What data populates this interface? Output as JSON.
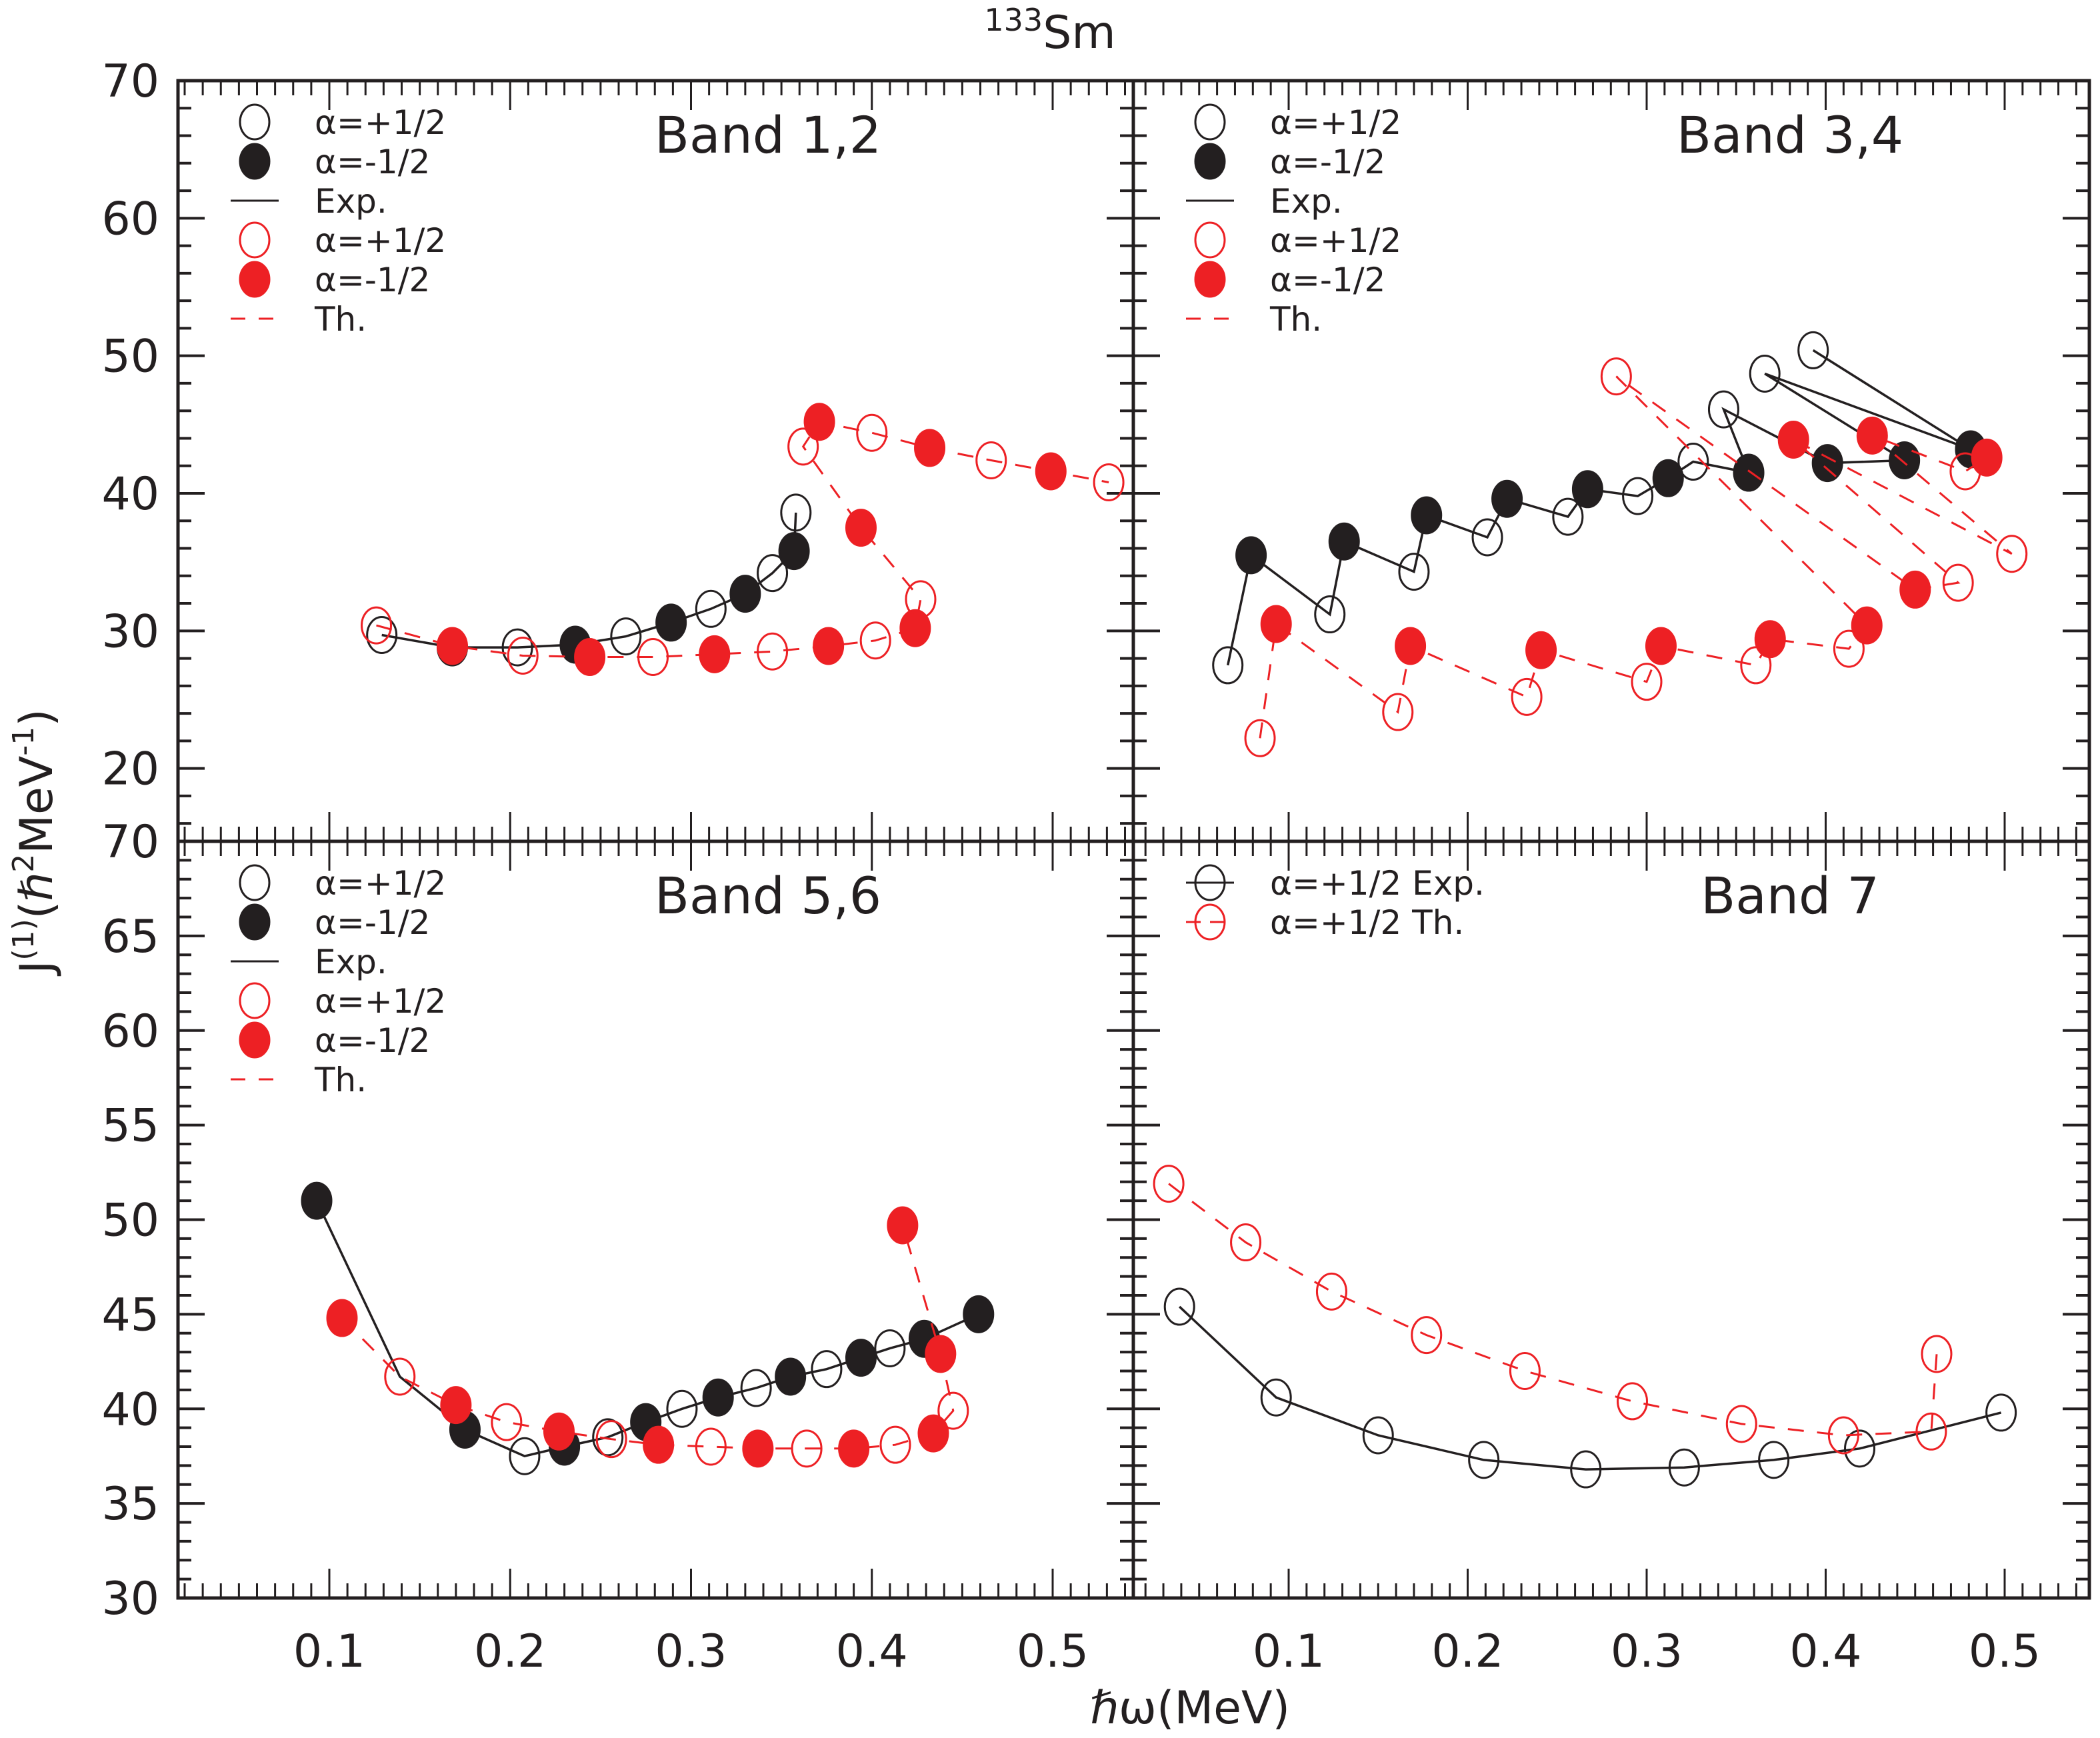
{
  "figure_title": {
    "mass": "133",
    "element": "Sm"
  },
  "xlabel": "ℏω(MeV)",
  "ylabel": {
    "main": "J",
    "sup1": "(1)",
    "unit_open": "(ℏ",
    "sup2": "2",
    "unit_mid": "MeV",
    "sup3": "-1",
    "unit_close": ")"
  },
  "colors": {
    "exp": "#231f20",
    "th": "#ed2024",
    "axis": "#231f20"
  },
  "chart_data": [
    {
      "type": "line",
      "panel": "top-left",
      "title": "Band 1,2",
      "xlabel": "ℏω(MeV)",
      "ylabel": "J(1)(ℏ2MeV-1)",
      "xlim": [
        0.02,
        0.54
      ],
      "ylim": [
        14.7,
        70
      ],
      "xticks": [
        0.1,
        0.2,
        0.3,
        0.4,
        0.5
      ],
      "yticks": [
        20,
        30,
        40,
        50,
        60,
        70
      ],
      "legend_position": "top-left",
      "legend": [
        {
          "label": "α=+1/2",
          "marker": "open",
          "color": "exp"
        },
        {
          "label": "α=-1/2",
          "marker": "filled",
          "color": "exp"
        },
        {
          "label": "Exp.",
          "marker": "line",
          "color": "exp"
        },
        {
          "label": "α=+1/2",
          "marker": "open",
          "color": "th"
        },
        {
          "label": "α=-1/2",
          "marker": "filled",
          "color": "th"
        },
        {
          "label": "Th.",
          "marker": "dash",
          "color": "th"
        }
      ],
      "series": [
        {
          "name": "Exp.",
          "color": "exp",
          "line": "solid",
          "points": [
            [
              0.129,
              29.7,
              "o"
            ],
            [
              0.168,
              28.8,
              "f"
            ],
            [
              0.204,
              28.8,
              "o"
            ],
            [
              0.236,
              29.0,
              "f"
            ],
            [
              0.264,
              29.6,
              "o"
            ],
            [
              0.289,
              30.6,
              "f"
            ],
            [
              0.311,
              31.6,
              "o"
            ],
            [
              0.33,
              32.7,
              "f"
            ],
            [
              0.345,
              34.2,
              "o"
            ],
            [
              0.357,
              35.8,
              "f"
            ],
            [
              0.358,
              38.6,
              "o"
            ]
          ]
        },
        {
          "name": "Th.",
          "color": "th",
          "line": "dashed",
          "points": [
            [
              0.126,
              30.4,
              "o"
            ],
            [
              0.168,
              28.9,
              "f"
            ],
            [
              0.207,
              28.2,
              "o"
            ],
            [
              0.244,
              28.1,
              "f"
            ],
            [
              0.279,
              28.1,
              "o"
            ],
            [
              0.313,
              28.3,
              "f"
            ],
            [
              0.345,
              28.5,
              "o"
            ],
            [
              0.376,
              28.9,
              "f"
            ],
            [
              0.402,
              29.3,
              "o"
            ],
            [
              0.424,
              30.2,
              "f"
            ],
            [
              0.427,
              32.3,
              "o"
            ],
            [
              0.394,
              37.5,
              "f"
            ],
            [
              0.362,
              43.4,
              "o"
            ],
            [
              0.371,
              45.2,
              "f"
            ],
            [
              0.4,
              44.4,
              "o"
            ],
            [
              0.432,
              43.3,
              "f"
            ],
            [
              0.466,
              42.4,
              "o"
            ],
            [
              0.499,
              41.6,
              "f"
            ],
            [
              0.531,
              40.8,
              "o"
            ]
          ]
        }
      ]
    },
    {
      "type": "line",
      "panel": "top-right",
      "title": "Band 3,4",
      "xlim": [
        0.02,
        0.54
      ],
      "ylim": [
        14.7,
        70
      ],
      "xticks": [
        0.1,
        0.2,
        0.3,
        0.4,
        0.5
      ],
      "yticks": [
        20,
        30,
        40,
        50,
        60,
        70
      ],
      "legend_position": "top-left",
      "legend": [
        {
          "label": "α=+1/2",
          "marker": "open",
          "color": "exp"
        },
        {
          "label": "α=-1/2",
          "marker": "filled",
          "color": "exp"
        },
        {
          "label": "Exp.",
          "marker": "line",
          "color": "exp"
        },
        {
          "label": "α=+1/2",
          "marker": "open",
          "color": "th"
        },
        {
          "label": "α=-1/2",
          "marker": "filled",
          "color": "th"
        },
        {
          "label": "Th.",
          "marker": "dash",
          "color": "th"
        }
      ],
      "series": [
        {
          "name": "Exp.",
          "color": "exp",
          "line": "solid",
          "points": [
            [
              0.066,
              27.5,
              "o"
            ],
            [
              0.079,
              35.5,
              "f"
            ],
            [
              0.123,
              31.2,
              "o"
            ],
            [
              0.131,
              36.5,
              "f"
            ],
            [
              0.17,
              34.3,
              "o"
            ],
            [
              0.177,
              38.4,
              "f"
            ],
            [
              0.211,
              36.8,
              "o"
            ],
            [
              0.222,
              39.6,
              "f"
            ],
            [
              0.256,
              38.3,
              "o"
            ],
            [
              0.267,
              40.3,
              "f"
            ],
            [
              0.295,
              39.8,
              "o"
            ],
            [
              0.312,
              41.1,
              "f"
            ],
            [
              0.326,
              42.3,
              "o"
            ],
            [
              0.357,
              41.5,
              "f"
            ],
            [
              0.343,
              46.1,
              "o"
            ],
            [
              0.401,
              42.2,
              "f"
            ],
            [
              0.444,
              42.4,
              "f"
            ],
            [
              0.366,
              48.7,
              "o"
            ],
            [
              0.481,
              43.2,
              "f"
            ],
            [
              0.393,
              50.4,
              "o"
            ]
          ]
        },
        {
          "name": "Th.",
          "color": "th",
          "line": "dashed",
          "points": [
            [
              0.084,
              22.2,
              "o"
            ],
            [
              0.093,
              30.5,
              "f"
            ],
            [
              0.161,
              24.1,
              "o"
            ],
            [
              0.168,
              28.9,
              "f"
            ],
            [
              0.233,
              25.2,
              "o"
            ],
            [
              0.241,
              28.6,
              "f"
            ],
            [
              0.3,
              26.3,
              "o"
            ],
            [
              0.308,
              28.9,
              "f"
            ],
            [
              0.361,
              27.5,
              "o"
            ],
            [
              0.369,
              29.4,
              "f"
            ],
            [
              0.413,
              28.7,
              "o"
            ],
            [
              0.423,
              30.4,
              "f"
            ],
            [
              0.283,
              48.5,
              "o"
            ],
            [
              0.45,
              33.0,
              "f"
            ],
            [
              0.474,
              33.5,
              "o"
            ],
            [
              0.382,
              43.9,
              "f"
            ],
            [
              0.504,
              35.6,
              "o"
            ],
            [
              0.426,
              44.2,
              "f"
            ],
            [
              0.478,
              41.6,
              "o"
            ],
            [
              0.49,
              42.6,
              "f"
            ]
          ]
        }
      ]
    },
    {
      "type": "line",
      "panel": "bottom-left",
      "title": "Band 5,6",
      "xlim": [
        0.02,
        0.54
      ],
      "ylim": [
        30,
        70
      ],
      "xticks": [
        0.1,
        0.2,
        0.3,
        0.4,
        0.5
      ],
      "yticks": [
        30,
        35,
        40,
        45,
        50,
        55,
        60,
        65,
        70
      ],
      "legend_position": "top-left",
      "legend": [
        {
          "label": "α=+1/2",
          "marker": "open",
          "color": "exp"
        },
        {
          "label": "α=-1/2",
          "marker": "filled",
          "color": "exp"
        },
        {
          "label": "Exp.",
          "marker": "line",
          "color": "exp"
        },
        {
          "label": "α=+1/2",
          "marker": "open",
          "color": "th"
        },
        {
          "label": "α=-1/2",
          "marker": "filled",
          "color": "th"
        },
        {
          "label": "Th.",
          "marker": "dash",
          "color": "th"
        }
      ],
      "series": [
        {
          "name": "Exp.",
          "color": "exp",
          "line": "solid",
          "points": [
            [
              0.093,
              51.0,
              "f"
            ],
            [
              0.139,
              41.7,
              "n"
            ],
            [
              0.175,
              38.9,
              "f"
            ],
            [
              0.208,
              37.5,
              "o"
            ],
            [
              0.23,
              38.0,
              "f"
            ],
            [
              0.254,
              38.5,
              "o"
            ],
            [
              0.275,
              39.3,
              "f"
            ],
            [
              0.295,
              40.0,
              "o"
            ],
            [
              0.315,
              40.6,
              "f"
            ],
            [
              0.336,
              41.1,
              "o"
            ],
            [
              0.355,
              41.7,
              "f"
            ],
            [
              0.375,
              42.1,
              "o"
            ],
            [
              0.394,
              42.7,
              "f"
            ],
            [
              0.41,
              43.2,
              "o"
            ],
            [
              0.429,
              43.7,
              "f"
            ],
            [
              0.459,
              45.0,
              "f"
            ]
          ]
        },
        {
          "name": "Th.",
          "color": "th",
          "line": "dashed",
          "points": [
            [
              0.107,
              44.8,
              "f"
            ],
            [
              0.139,
              41.7,
              "o"
            ],
            [
              0.17,
              40.2,
              "f"
            ],
            [
              0.198,
              39.3,
              "o"
            ],
            [
              0.227,
              38.8,
              "f"
            ],
            [
              0.256,
              38.4,
              "o"
            ],
            [
              0.282,
              38.1,
              "f"
            ],
            [
              0.311,
              38.0,
              "o"
            ],
            [
              0.337,
              37.9,
              "f"
            ],
            [
              0.364,
              37.9,
              "o"
            ],
            [
              0.39,
              37.9,
              "f"
            ],
            [
              0.413,
              38.1,
              "o"
            ],
            [
              0.434,
              38.7,
              "f"
            ],
            [
              0.445,
              39.9,
              "o"
            ],
            [
              0.438,
              42.9,
              "f"
            ],
            [
              0.417,
              49.7,
              "f"
            ]
          ]
        }
      ]
    },
    {
      "type": "line",
      "panel": "bottom-right",
      "title": "Band 7",
      "xlim": [
        0.02,
        0.54
      ],
      "ylim": [
        30,
        70
      ],
      "xticks": [
        0.1,
        0.2,
        0.3,
        0.4,
        0.5
      ],
      "yticks": [
        30,
        35,
        40,
        45,
        50,
        55,
        60,
        65,
        70
      ],
      "legend_position": "top-left",
      "legend": [
        {
          "label": "α=+1/2 Exp.",
          "marker": "open-line",
          "color": "exp"
        },
        {
          "label": "α=+1/2 Th.",
          "marker": "open-dash",
          "color": "th"
        }
      ],
      "series": [
        {
          "name": "α=+1/2 Exp.",
          "color": "exp",
          "line": "solid",
          "points": [
            [
              0.039,
              45.4,
              "o"
            ],
            [
              0.093,
              40.6,
              "o"
            ],
            [
              0.15,
              38.6,
              "o"
            ],
            [
              0.209,
              37.3,
              "o"
            ],
            [
              0.266,
              36.8,
              "o"
            ],
            [
              0.321,
              36.9,
              "o"
            ],
            [
              0.371,
              37.3,
              "o"
            ],
            [
              0.419,
              37.9,
              "o"
            ],
            [
              0.498,
              39.8,
              "o"
            ]
          ]
        },
        {
          "name": "α=+1/2 Th.",
          "color": "th",
          "line": "dashed",
          "points": [
            [
              0.033,
              51.9,
              "o"
            ],
            [
              0.076,
              48.8,
              "o"
            ],
            [
              0.124,
              46.2,
              "o"
            ],
            [
              0.177,
              43.9,
              "o"
            ],
            [
              0.232,
              42.0,
              "o"
            ],
            [
              0.292,
              40.4,
              "o"
            ],
            [
              0.353,
              39.2,
              "o"
            ],
            [
              0.41,
              38.6,
              "o"
            ],
            [
              0.459,
              38.8,
              "o"
            ],
            [
              0.462,
              42.9,
              "o"
            ]
          ]
        }
      ]
    }
  ]
}
